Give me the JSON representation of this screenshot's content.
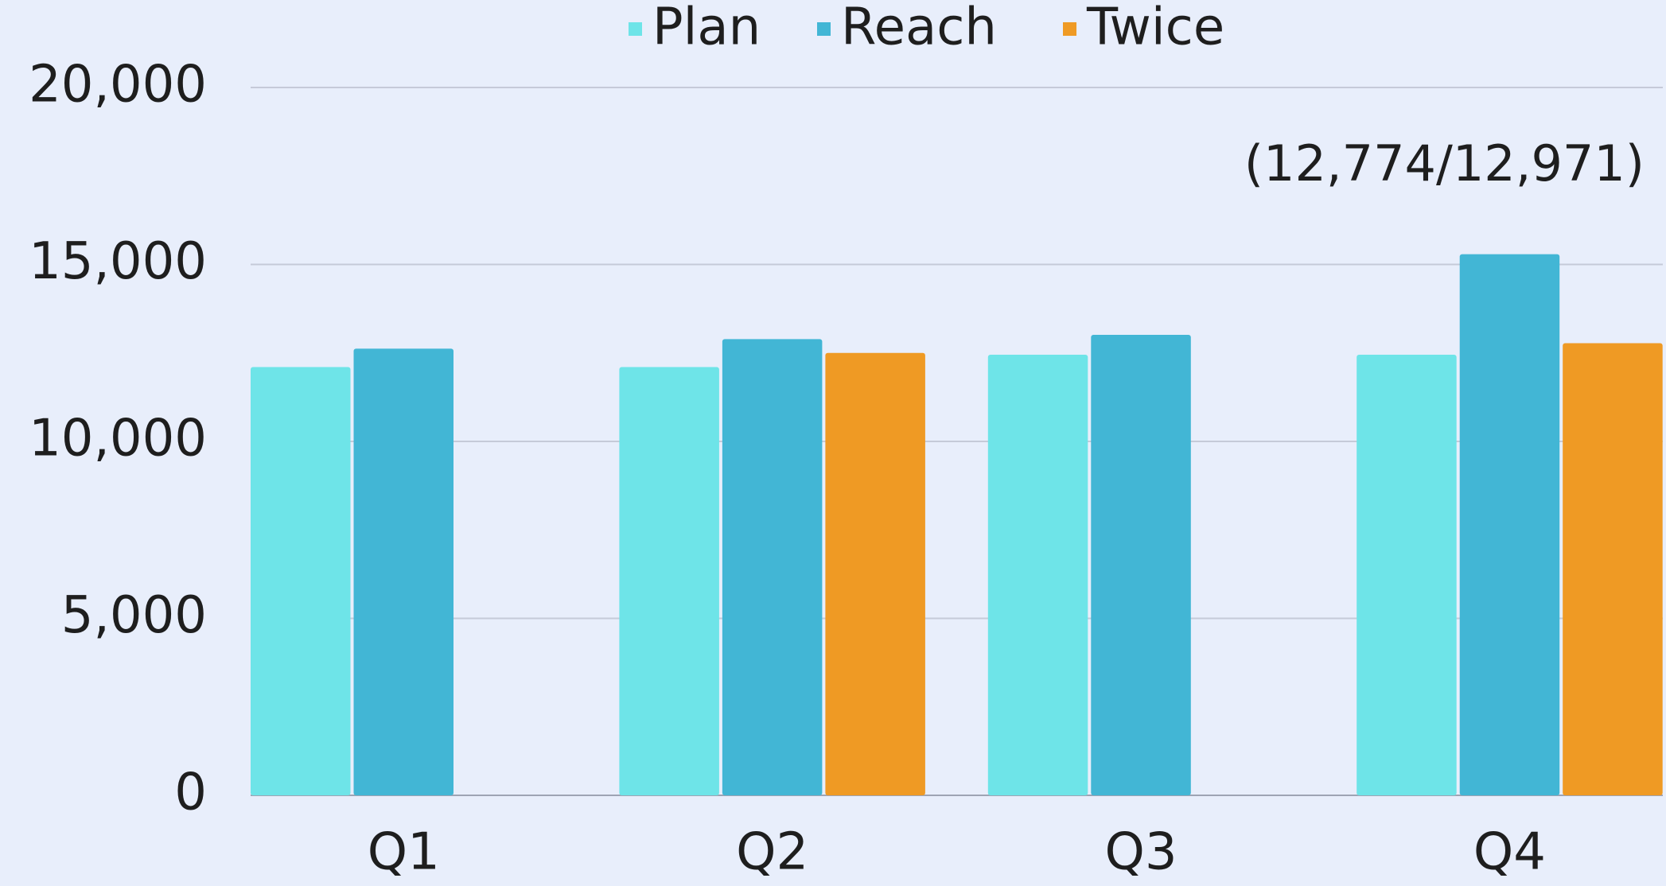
{
  "chart_data": {
    "type": "bar",
    "categories": [
      "Q1",
      "Q2",
      "Q3",
      "Q4"
    ],
    "series": [
      {
        "name": "Plan",
        "color": "#6ee4e8",
        "values": [
          12100,
          12100,
          12450,
          12450
        ]
      },
      {
        "name": "Reach",
        "color": "#42b6d5",
        "values": [
          12620,
          12890,
          13010,
          15290
        ]
      },
      {
        "name": "Twice",
        "color": "#ef9a24",
        "values": [
          null,
          12500,
          null,
          12774
        ]
      }
    ],
    "annotations": [
      "(12,774/12,971)"
    ],
    "ylim": [
      0,
      20000
    ],
    "yticks": [
      0,
      {
        "value": 5000,
        "label": "5,000"
      },
      {
        "value": 10000,
        "label": "10,000"
      },
      {
        "value": 15000,
        "label": "15,000"
      },
      {
        "value": 20000,
        "label": "20,000"
      }
    ],
    "grid": true,
    "legend": "top"
  }
}
